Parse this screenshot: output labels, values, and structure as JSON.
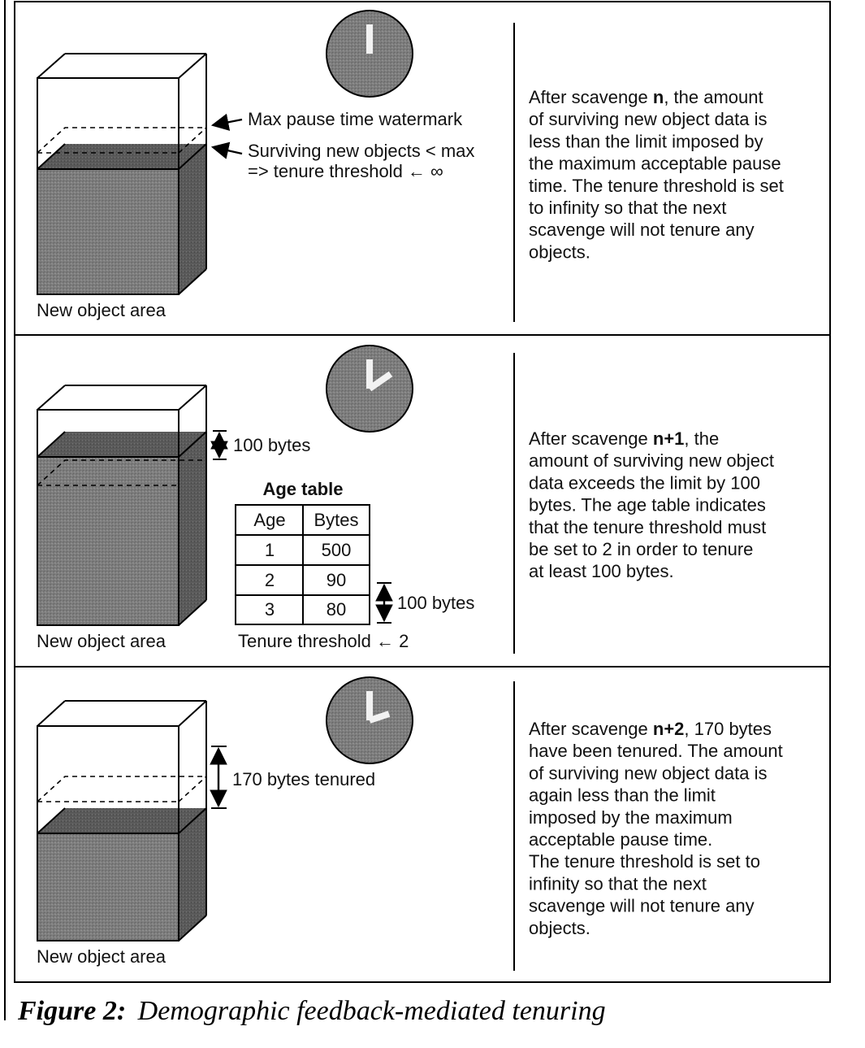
{
  "panels": [
    {
      "paragraph_lines": [
        [
          "After scavenge ",
          "n",
          ", the amount"
        ],
        [
          "of surviving new object data is"
        ],
        [
          "less than the limit imposed by"
        ],
        [
          "the maximum acceptable pause"
        ],
        [
          "time. The tenure threshold is set"
        ],
        [
          "to infinity so that the next"
        ],
        [
          "scavenge will not tenure any"
        ],
        [
          "objects."
        ]
      ],
      "area_label": "New object area",
      "watermark_label": "Max pause time watermark",
      "surviving_label": "Surviving new objects < max",
      "threshold_label": "=> tenure threshold ← ∞"
    },
    {
      "paragraph_lines": [
        [
          "After scavenge ",
          "n+1",
          ", the"
        ],
        [
          "amount of surviving new object"
        ],
        [
          "data exceeds the limit by 100"
        ],
        [
          "bytes. The age table indicates"
        ],
        [
          "that the tenure threshold must"
        ],
        [
          "be set to 2 in order to tenure"
        ],
        [
          "at least 100 bytes."
        ]
      ],
      "area_label": "New object area",
      "excess_label": "100 bytes",
      "age_table": {
        "title": "Age table",
        "headers": [
          "Age",
          "Bytes"
        ],
        "rows": [
          [
            "1",
            "500"
          ],
          [
            "2",
            "90"
          ],
          [
            "3",
            "80"
          ]
        ]
      },
      "table_bracket_label": "100 bytes",
      "threshold_label": "Tenure threshold ← 2"
    },
    {
      "paragraph_lines": [
        [
          "After scavenge ",
          "n+2",
          ", 170 bytes"
        ],
        [
          "have been tenured. The amount"
        ],
        [
          "of surviving new object data is"
        ],
        [
          "again less than the limit"
        ],
        [
          "imposed by the maximum"
        ],
        [
          "acceptable pause time."
        ],
        [
          "The tenure threshold is set to"
        ],
        [
          "infinity so that the next"
        ],
        [
          "scavenge will not tenure any"
        ],
        [
          "objects."
        ]
      ],
      "area_label": "New object area",
      "tenured_label": "170 bytes tenured"
    }
  ],
  "caption": {
    "label": "Figure 2:",
    "text": "Demographic feedback-mediated tenuring"
  },
  "colors": {
    "fill_dark": "#7d7d7d",
    "fill_side": "#5a5a5a",
    "fill_top": "#4c4c4c",
    "clock_face": "#6a6a6a",
    "clock_hands": "#f2f2f2",
    "ink": "#111111"
  },
  "icons": [
    "clock-icon",
    "double-arrow-icon",
    "arrow-left-icon"
  ]
}
